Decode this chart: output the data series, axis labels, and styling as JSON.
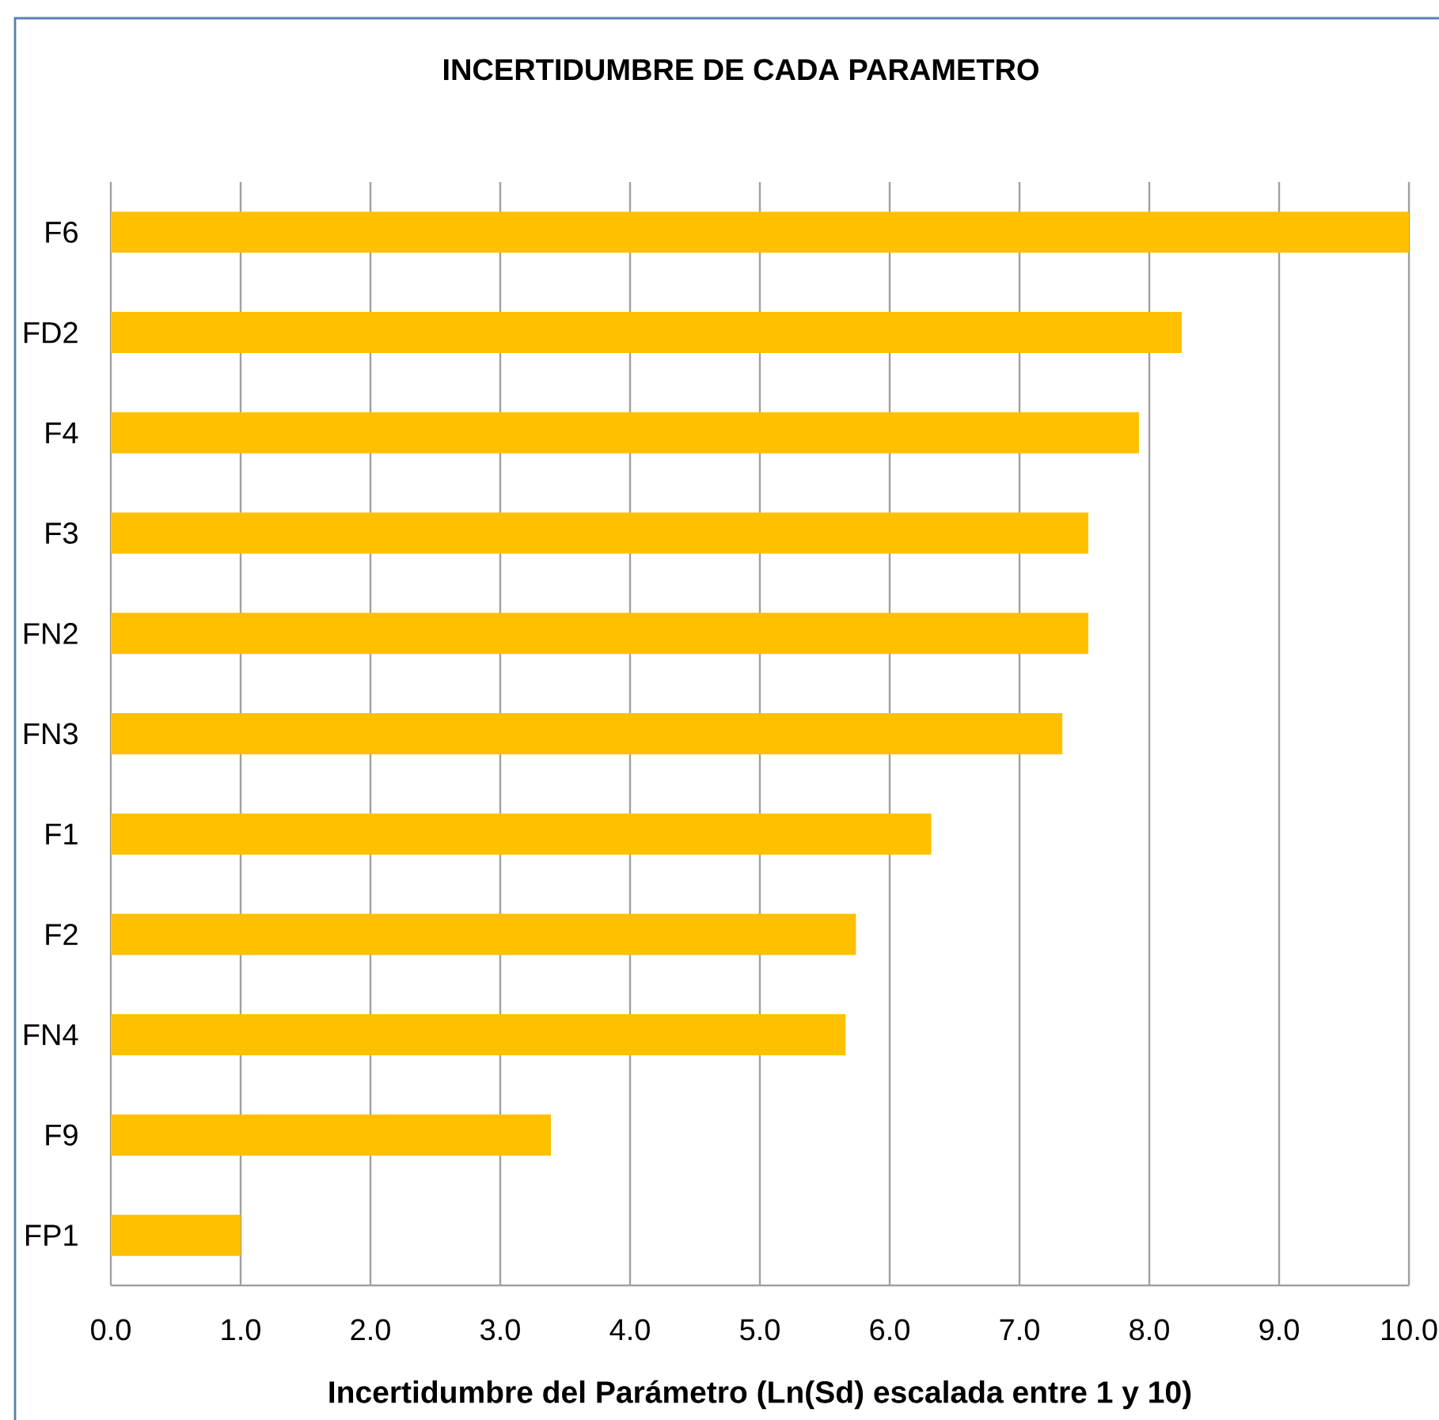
{
  "chart_data": {
    "type": "bar",
    "orientation": "horizontal",
    "title": "INCERTIDUMBRE DE CADA PARAMETRO",
    "xlabel": "Incertidumbre del Parámetro (Ln(Sd) escalada entre 1 y 10)",
    "categories": [
      "F6",
      "FD2",
      "F4",
      "F3",
      "FN2",
      "FN3",
      "F1",
      "F2",
      "FN4",
      "F9",
      "FP1"
    ],
    "values": [
      10.0,
      8.25,
      7.92,
      7.53,
      7.53,
      7.33,
      6.32,
      5.74,
      5.66,
      3.39,
      1.0
    ],
    "color": "#ffc000",
    "xlim": [
      0,
      10
    ],
    "xticks": [
      {
        "value": 0,
        "label": "0.0"
      },
      {
        "value": 1,
        "label": "1.0"
      },
      {
        "value": 2,
        "label": "2.0"
      },
      {
        "value": 3,
        "label": "3.0"
      },
      {
        "value": 4,
        "label": "4.0"
      },
      {
        "value": 5,
        "label": "5.0"
      },
      {
        "value": 6,
        "label": "6.0"
      },
      {
        "value": 7,
        "label": "7.0"
      },
      {
        "value": 8,
        "label": "8.0"
      },
      {
        "value": 9,
        "label": "9.0"
      },
      {
        "value": 10,
        "label": "10.0"
      }
    ],
    "grid": "x"
  }
}
